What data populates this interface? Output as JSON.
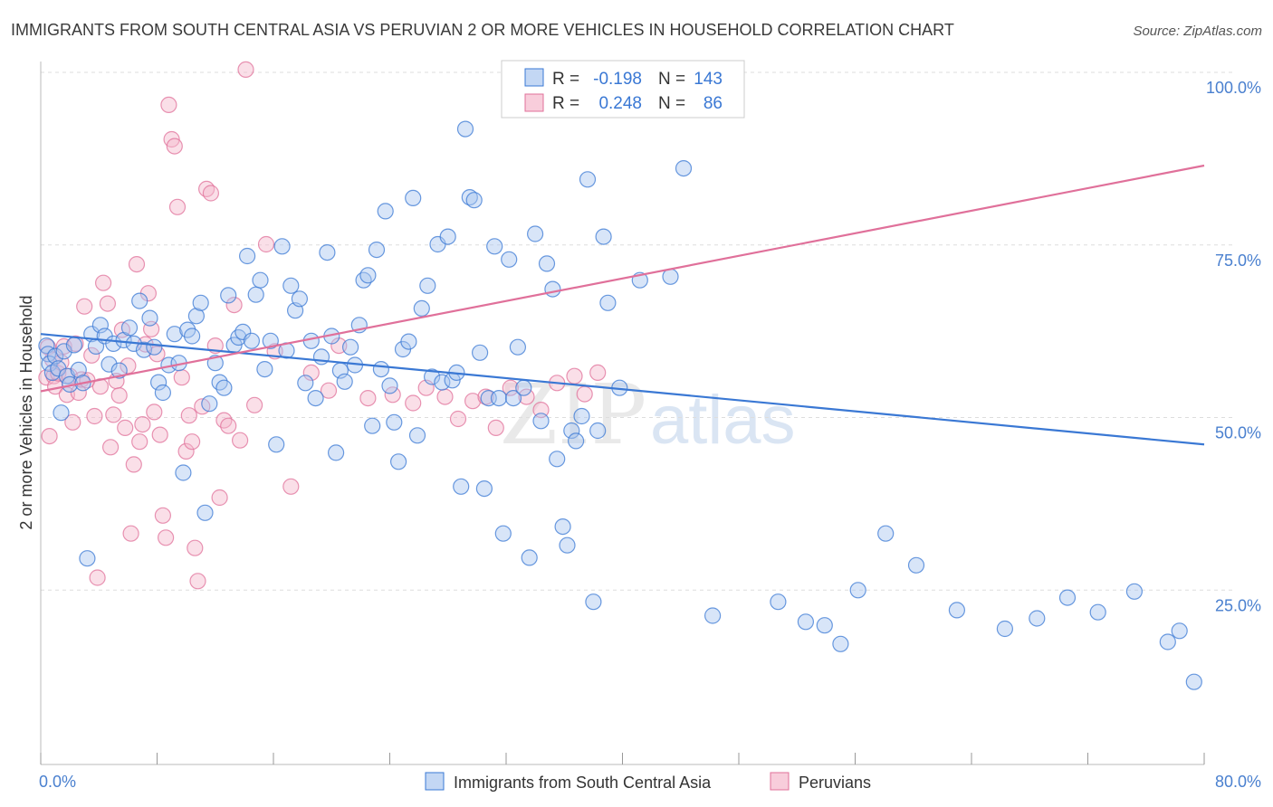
{
  "title": "IMMIGRANTS FROM SOUTH CENTRAL ASIA VS PERUVIAN 2 OR MORE VEHICLES IN HOUSEHOLD CORRELATION CHART",
  "source": "Source: ZipAtlas.com",
  "watermark": {
    "zip": "ZIP",
    "atlas": "atlas"
  },
  "colors": {
    "blue": "#3a78d4",
    "blue_fill": "#a9c6ef",
    "blue_tick": "#4a80cf",
    "pink": "#e0709a",
    "pink_fill": "#f5b8cc",
    "grid": "#dddddd",
    "axis": "#999999"
  },
  "legend": {
    "row1": {
      "r_label": "R =",
      "r_value": "-0.198",
      "n_label": "N =",
      "n_value": "143"
    },
    "row2": {
      "r_label": "R =",
      "r_value": "0.248",
      "n_label": "N =",
      "n_value": "86"
    }
  },
  "bottom_legend": {
    "blue": "Immigrants from South Central Asia",
    "pink": "Peruvians"
  },
  "chart_data": {
    "type": "scatter",
    "title": "IMMIGRANTS FROM SOUTH CENTRAL ASIA VS PERUVIAN 2 OR MORE VEHICLES IN HOUSEHOLD CORRELATION CHART",
    "xlabel": "",
    "ylabel": "2 or more Vehicles in Household",
    "xlim": [
      0,
      80
    ],
    "ylim": [
      0,
      100
    ],
    "x_tick_labels": [
      {
        "value": 0,
        "label": "0.0%"
      },
      {
        "value": 80,
        "label": "80.0%"
      }
    ],
    "x_minor_ticks": [
      0,
      8,
      16,
      24,
      32,
      40,
      48,
      56,
      64,
      72,
      80
    ],
    "y_ticks": [
      {
        "value": 25,
        "label": "25.0%"
      },
      {
        "value": 50,
        "label": "50.0%"
      },
      {
        "value": 75,
        "label": "75.0%"
      },
      {
        "value": 100,
        "label": "100.0%"
      }
    ],
    "series": [
      {
        "name": "Immigrants from South Central Asia",
        "color": "blue",
        "r": -0.198,
        "n": 143,
        "trend": {
          "x0": 0,
          "y0": 62.1,
          "x1": 80,
          "y1": 46.1
        },
        "points": [
          [
            0.4,
            60.4
          ],
          [
            0.5,
            59.2
          ],
          [
            0.6,
            57.8
          ],
          [
            0.8,
            56.5
          ],
          [
            1.0,
            58.9
          ],
          [
            1.2,
            57.1
          ],
          [
            1.4,
            50.7
          ],
          [
            1.6,
            59.6
          ],
          [
            1.8,
            56.0
          ],
          [
            2.0,
            54.8
          ],
          [
            2.3,
            60.5
          ],
          [
            2.6,
            56.9
          ],
          [
            2.9,
            55.0
          ],
          [
            3.2,
            29.6
          ],
          [
            3.5,
            62.1
          ],
          [
            3.8,
            60.3
          ],
          [
            4.1,
            63.4
          ],
          [
            4.4,
            61.8
          ],
          [
            4.7,
            57.7
          ],
          [
            5.0,
            60.7
          ],
          [
            5.4,
            56.8
          ],
          [
            5.7,
            61.2
          ],
          [
            6.1,
            63.0
          ],
          [
            6.4,
            60.7
          ],
          [
            6.8,
            66.9
          ],
          [
            7.1,
            59.8
          ],
          [
            7.5,
            64.4
          ],
          [
            7.8,
            60.2
          ],
          [
            8.1,
            55.1
          ],
          [
            8.4,
            53.6
          ],
          [
            8.8,
            57.6
          ],
          [
            9.2,
            62.1
          ],
          [
            9.5,
            57.9
          ],
          [
            9.8,
            42.0
          ],
          [
            10.1,
            62.7
          ],
          [
            10.4,
            61.8
          ],
          [
            10.7,
            64.7
          ],
          [
            11.0,
            66.6
          ],
          [
            11.3,
            36.2
          ],
          [
            11.6,
            52.0
          ],
          [
            12.0,
            57.9
          ],
          [
            12.3,
            55.1
          ],
          [
            12.6,
            54.3
          ],
          [
            12.9,
            67.7
          ],
          [
            13.3,
            60.5
          ],
          [
            13.6,
            61.6
          ],
          [
            13.9,
            62.4
          ],
          [
            14.2,
            73.4
          ],
          [
            14.5,
            61.1
          ],
          [
            14.8,
            67.8
          ],
          [
            15.1,
            69.9
          ],
          [
            15.4,
            57.0
          ],
          [
            15.8,
            61.1
          ],
          [
            16.2,
            46.1
          ],
          [
            16.6,
            74.8
          ],
          [
            16.9,
            59.7
          ],
          [
            17.2,
            69.1
          ],
          [
            17.5,
            65.5
          ],
          [
            17.8,
            67.2
          ],
          [
            18.2,
            55.0
          ],
          [
            18.6,
            61.1
          ],
          [
            18.9,
            52.8
          ],
          [
            19.3,
            58.8
          ],
          [
            19.7,
            73.9
          ],
          [
            20.0,
            61.8
          ],
          [
            20.3,
            44.9
          ],
          [
            20.6,
            56.8
          ],
          [
            20.9,
            55.2
          ],
          [
            21.3,
            60.2
          ],
          [
            21.6,
            57.6
          ],
          [
            21.9,
            63.4
          ],
          [
            22.2,
            69.9
          ],
          [
            22.5,
            70.6
          ],
          [
            22.8,
            48.8
          ],
          [
            23.1,
            74.3
          ],
          [
            23.4,
            57.0
          ],
          [
            23.7,
            79.9
          ],
          [
            24.0,
            54.6
          ],
          [
            24.3,
            49.3
          ],
          [
            24.6,
            43.6
          ],
          [
            24.9,
            59.9
          ],
          [
            25.3,
            61.0
          ],
          [
            25.6,
            81.8
          ],
          [
            25.9,
            47.4
          ],
          [
            26.2,
            65.8
          ],
          [
            26.6,
            69.1
          ],
          [
            26.9,
            55.9
          ],
          [
            27.3,
            75.1
          ],
          [
            27.6,
            55.1
          ],
          [
            28.0,
            76.2
          ],
          [
            28.3,
            55.4
          ],
          [
            28.6,
            56.5
          ],
          [
            28.9,
            40.0
          ],
          [
            29.2,
            91.8
          ],
          [
            29.5,
            81.9
          ],
          [
            29.8,
            81.5
          ],
          [
            30.2,
            59.4
          ],
          [
            30.5,
            39.7
          ],
          [
            30.8,
            52.8
          ],
          [
            31.2,
            74.8
          ],
          [
            31.5,
            52.8
          ],
          [
            31.8,
            33.2
          ],
          [
            32.2,
            72.9
          ],
          [
            32.5,
            52.8
          ],
          [
            32.8,
            60.2
          ],
          [
            33.2,
            54.3
          ],
          [
            33.6,
            29.7
          ],
          [
            34.0,
            76.6
          ],
          [
            34.4,
            49.5
          ],
          [
            34.8,
            72.3
          ],
          [
            35.2,
            68.6
          ],
          [
            35.5,
            44.0
          ],
          [
            35.9,
            34.2
          ],
          [
            36.2,
            31.5
          ],
          [
            36.5,
            48.1
          ],
          [
            36.8,
            46.6
          ],
          [
            37.2,
            50.2
          ],
          [
            37.6,
            84.5
          ],
          [
            38.0,
            23.3
          ],
          [
            38.3,
            48.1
          ],
          [
            38.7,
            76.2
          ],
          [
            39.0,
            66.6
          ],
          [
            39.8,
            54.3
          ],
          [
            41.2,
            69.9
          ],
          [
            43.3,
            70.4
          ],
          [
            44.2,
            86.1
          ],
          [
            46.2,
            21.3
          ],
          [
            50.7,
            23.3
          ],
          [
            52.6,
            20.4
          ],
          [
            53.9,
            19.9
          ],
          [
            55.0,
            17.2
          ],
          [
            56.2,
            25.0
          ],
          [
            58.1,
            33.2
          ],
          [
            60.2,
            28.6
          ],
          [
            63.0,
            22.1
          ],
          [
            66.3,
            19.4
          ],
          [
            68.5,
            20.9
          ],
          [
            70.6,
            23.9
          ],
          [
            72.7,
            21.8
          ],
          [
            75.2,
            24.8
          ],
          [
            77.5,
            17.5
          ],
          [
            78.3,
            19.1
          ],
          [
            79.3,
            11.7
          ]
        ]
      },
      {
        "name": "Peruvians",
        "color": "pink",
        "r": 0.248,
        "n": 86,
        "trend": {
          "x0": 0,
          "y0": 53.8,
          "x1": 80,
          "y1": 86.5
        },
        "points": [
          [
            0.4,
            55.8
          ],
          [
            0.5,
            60.2
          ],
          [
            0.6,
            47.3
          ],
          [
            0.8,
            58.4
          ],
          [
            0.9,
            56.0
          ],
          [
            1.0,
            54.5
          ],
          [
            1.2,
            56.4
          ],
          [
            1.4,
            58.0
          ],
          [
            1.6,
            60.3
          ],
          [
            1.8,
            53.3
          ],
          [
            2.0,
            56.0
          ],
          [
            2.2,
            49.3
          ],
          [
            2.4,
            60.7
          ],
          [
            2.6,
            53.6
          ],
          [
            2.8,
            55.5
          ],
          [
            3.0,
            66.1
          ],
          [
            3.2,
            55.4
          ],
          [
            3.5,
            59.0
          ],
          [
            3.7,
            50.2
          ],
          [
            3.9,
            26.8
          ],
          [
            4.1,
            54.5
          ],
          [
            4.3,
            69.5
          ],
          [
            4.6,
            66.5
          ],
          [
            4.8,
            45.7
          ],
          [
            5.0,
            50.4
          ],
          [
            5.2,
            55.3
          ],
          [
            5.4,
            53.2
          ],
          [
            5.6,
            62.7
          ],
          [
            5.8,
            48.5
          ],
          [
            6.0,
            57.5
          ],
          [
            6.2,
            33.2
          ],
          [
            6.4,
            43.2
          ],
          [
            6.6,
            72.2
          ],
          [
            6.8,
            46.5
          ],
          [
            7.0,
            49.0
          ],
          [
            7.2,
            60.6
          ],
          [
            7.4,
            68.0
          ],
          [
            7.6,
            62.8
          ],
          [
            7.8,
            50.8
          ],
          [
            8.0,
            59.2
          ],
          [
            8.2,
            47.5
          ],
          [
            8.4,
            35.8
          ],
          [
            8.6,
            32.6
          ],
          [
            8.8,
            95.3
          ],
          [
            9.0,
            90.3
          ],
          [
            9.2,
            89.3
          ],
          [
            9.4,
            80.5
          ],
          [
            9.7,
            55.8
          ],
          [
            10.0,
            45.1
          ],
          [
            10.2,
            50.3
          ],
          [
            10.4,
            46.5
          ],
          [
            10.6,
            31.1
          ],
          [
            10.8,
            26.3
          ],
          [
            11.1,
            51.6
          ],
          [
            11.4,
            83.1
          ],
          [
            11.7,
            82.5
          ],
          [
            12.0,
            60.4
          ],
          [
            12.3,
            38.4
          ],
          [
            12.6,
            49.6
          ],
          [
            12.9,
            48.8
          ],
          [
            13.3,
            66.3
          ],
          [
            13.7,
            46.7
          ],
          [
            14.1,
            100.4
          ],
          [
            14.7,
            51.8
          ],
          [
            15.5,
            75.1
          ],
          [
            16.1,
            59.6
          ],
          [
            17.2,
            40.0
          ],
          [
            18.6,
            56.5
          ],
          [
            19.8,
            53.9
          ],
          [
            20.5,
            60.4
          ],
          [
            22.5,
            52.8
          ],
          [
            24.2,
            53.3
          ],
          [
            25.6,
            52.1
          ],
          [
            26.5,
            54.3
          ],
          [
            27.8,
            53.0
          ],
          [
            28.7,
            49.8
          ],
          [
            29.7,
            52.4
          ],
          [
            30.6,
            53.0
          ],
          [
            31.3,
            48.5
          ],
          [
            32.3,
            54.3
          ],
          [
            33.4,
            53.0
          ],
          [
            34.4,
            51.1
          ],
          [
            35.5,
            55.0
          ],
          [
            36.7,
            56.0
          ],
          [
            37.4,
            53.4
          ],
          [
            38.3,
            56.5
          ]
        ]
      }
    ]
  }
}
